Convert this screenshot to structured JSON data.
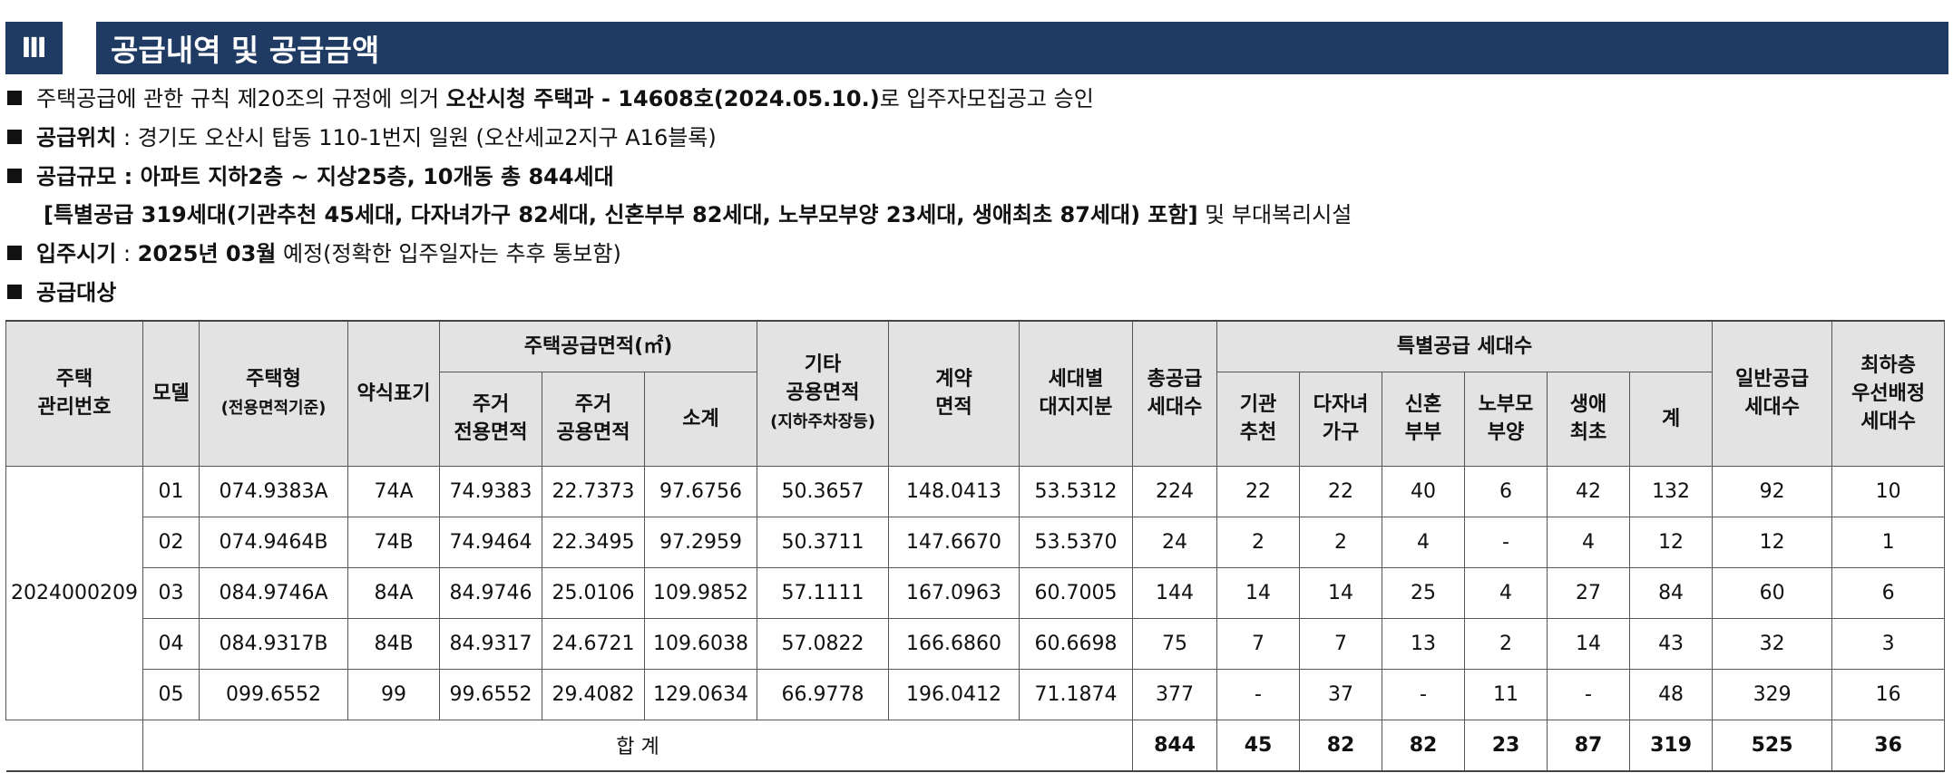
{
  "header": {
    "number": "Ⅲ",
    "title": "공급내역 및 공급금액"
  },
  "intro": {
    "line1_pre": "주택공급에 관한 규칙 제20조의 규정에 의거 ",
    "line1_bold": "오산시청 주택과 - 14608호(2024.05.10.)",
    "line1_post": "로 입주자모집공고 승인",
    "loc_label": "공급위치",
    "loc_value": " : 경기도 오산시 탑동 110-1번지 일원 (오산세교2지구 A16블록)",
    "scale_label": "공급규모",
    "scale_value": " : 아파트 지하2층 ~ 지상25층, 10개동 총 844세대",
    "special_bold": "[특별공급 319세대(기관추천 45세대, 다자녀가구 82세대, 신혼부부 82세대, 노부모부양 23세대, 생애최초 87세대) 포함]",
    "special_post": " 및 부대복리시설",
    "movein_label": "입주시기",
    "movein_sep": " : ",
    "movein_bold": "2025년 03월",
    "movein_post": " 예정(정확한 입주일자는 추후 통보함)",
    "target_label": "공급대상"
  },
  "table": {
    "h_mgmt_1": "주택",
    "h_mgmt_2": "관리번호",
    "h_model": "모델",
    "h_type_1": "주택형",
    "h_type_2": "(전용면적기준)",
    "h_abbr": "약식표기",
    "h_area": "주택공급면적(㎡)",
    "h_excl_1": "주거",
    "h_excl_2": "전용면적",
    "h_common_1": "주거",
    "h_common_2": "공용면적",
    "h_sub": "소계",
    "h_other_1": "기타",
    "h_other_2": "공용면적",
    "h_other_3": "(지하주차장등)",
    "h_contract_1": "계약",
    "h_contract_2": "면적",
    "h_land_1": "세대별",
    "h_land_2": "대지지분",
    "h_total_1": "총공급",
    "h_total_2": "세대수",
    "h_special": "특별공급 세대수",
    "h_inst_1": "기관",
    "h_inst_2": "추천",
    "h_multi_1": "다자녀",
    "h_multi_2": "가구",
    "h_newlywed_1": "신혼",
    "h_newlywed_2": "부부",
    "h_elder_1": "노부모",
    "h_elder_2": "부양",
    "h_first_1": "생애",
    "h_first_2": "최초",
    "h_sum": "계",
    "h_general_1": "일반공급",
    "h_general_2": "세대수",
    "h_lowest_1": "최하층",
    "h_lowest_2": "우선배정",
    "h_lowest_3": "세대수",
    "mgmt_no": "2024000209",
    "rows": [
      [
        "01",
        "074.9383A",
        "74A",
        "74.9383",
        "22.7373",
        "97.6756",
        "50.3657",
        "148.0413",
        "53.5312",
        "224",
        "22",
        "22",
        "40",
        "6",
        "42",
        "132",
        "92",
        "10"
      ],
      [
        "02",
        "074.9464B",
        "74B",
        "74.9464",
        "22.3495",
        "97.2959",
        "50.3711",
        "147.6670",
        "53.5370",
        "24",
        "2",
        "2",
        "4",
        "-",
        "4",
        "12",
        "12",
        "1"
      ],
      [
        "03",
        "084.9746A",
        "84A",
        "84.9746",
        "25.0106",
        "109.9852",
        "57.1111",
        "167.0963",
        "60.7005",
        "144",
        "14",
        "14",
        "25",
        "4",
        "27",
        "84",
        "60",
        "6"
      ],
      [
        "04",
        "084.9317B",
        "84B",
        "84.9317",
        "24.6721",
        "109.6038",
        "57.0822",
        "166.6860",
        "60.6698",
        "75",
        "7",
        "7",
        "13",
        "2",
        "14",
        "43",
        "32",
        "3"
      ],
      [
        "05",
        "099.6552",
        "99",
        "99.6552",
        "29.4082",
        "129.0634",
        "66.9778",
        "196.0412",
        "71.1874",
        "377",
        "-",
        "37",
        "-",
        "11",
        "-",
        "48",
        "329",
        "16"
      ]
    ],
    "total_label": "합 계",
    "totals": [
      "844",
      "45",
      "82",
      "82",
      "23",
      "87",
      "319",
      "525",
      "36"
    ]
  }
}
